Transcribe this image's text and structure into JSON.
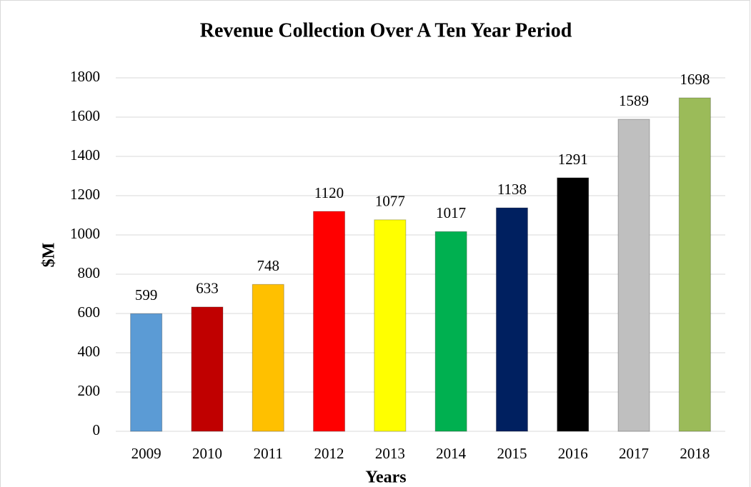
{
  "chart_data": {
    "type": "bar",
    "title": "Revenue Collection Over A Ten Year Period",
    "x_label": "Years",
    "y_label": "$M",
    "categories": [
      "2009",
      "2010",
      "2011",
      "2012",
      "2013",
      "2014",
      "2015",
      "2016",
      "2017",
      "2018"
    ],
    "values": [
      599,
      633,
      748,
      1120,
      1077,
      1017,
      1138,
      1291,
      1589,
      1698
    ],
    "colors": [
      "#5b9bd5",
      "#c00000",
      "#ffc000",
      "#ff0000",
      "#ffff00",
      "#00b050",
      "#002060",
      "#000000",
      "#bfbfbf",
      "#9bbb59"
    ],
    "ylim": [
      0,
      1800
    ],
    "yticks": [
      0,
      200,
      400,
      600,
      800,
      1000,
      1200,
      1400,
      1600,
      1800
    ],
    "grid": true
  }
}
